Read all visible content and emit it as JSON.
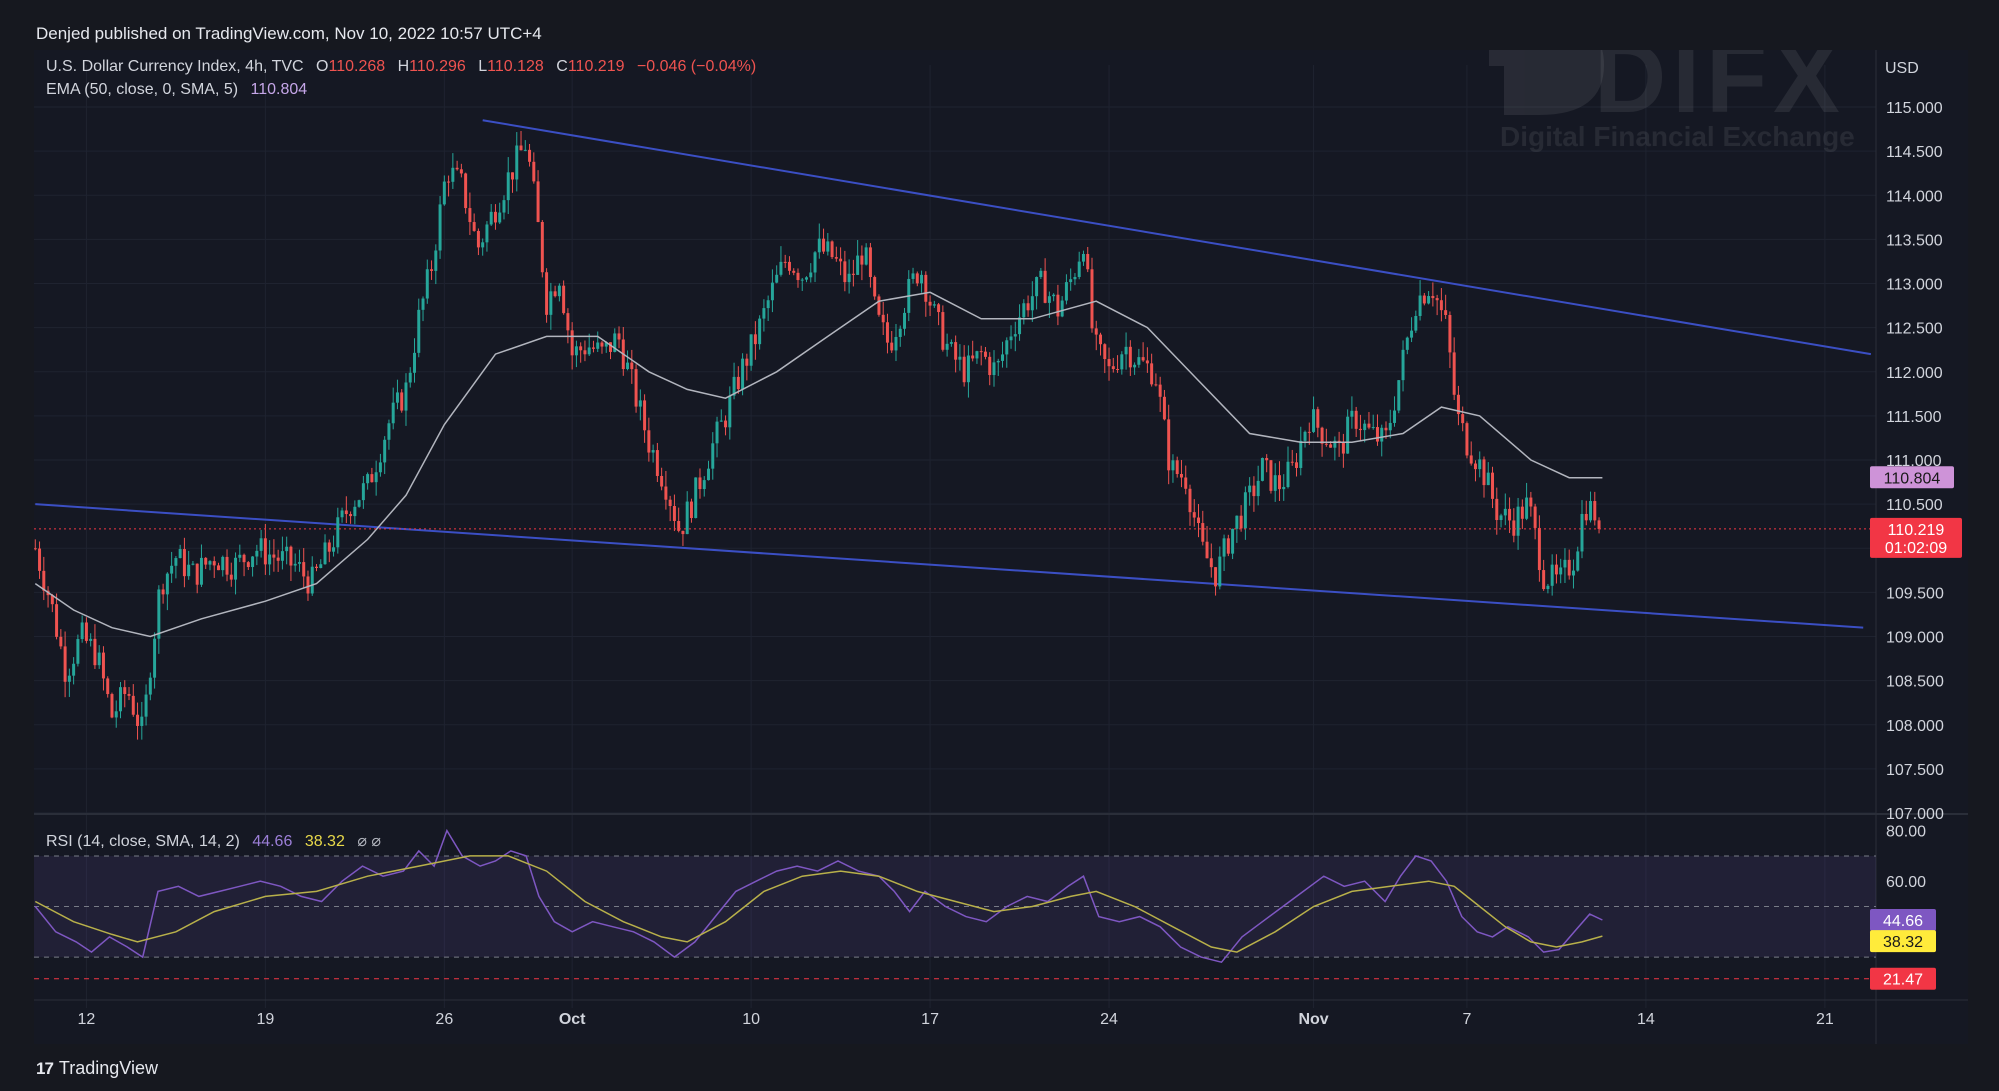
{
  "header": {
    "publish_line": "Denjed published on TradingView.com, Nov 10, 2022 10:57 UTC+4"
  },
  "footer": {
    "brand": "TradingView"
  },
  "watermark": {
    "brand": "DIFX",
    "tagline": "Digital Financial Exchange"
  },
  "colors": {
    "up": "#26a69a",
    "down": "#ef5350",
    "ema": "#b2b5be",
    "trendline": "#3b4fc4",
    "rsi": "#7e57c2",
    "rsi_ma": "#b8b04a",
    "price_tag": "#f23645",
    "ema_tag": "#ce93d8",
    "rsi_tag": "#7e57c2",
    "rsi_ma_tag": "#ffeb3b"
  },
  "legend": {
    "symbol": "U.S. Dollar Currency Index, 4h, TVC",
    "o_label": "O",
    "o_value": "110.268",
    "h_label": "H",
    "h_value": "110.296",
    "l_label": "L",
    "l_value": "110.128",
    "c_label": "C",
    "c_value": "110.219",
    "change": "−0.046 (−0.04%)",
    "ema_label": "EMA (50, close, 0, SMA, 5)",
    "ema_value": "110.804"
  },
  "rsi_legend": {
    "label": "RSI (14, close, SMA, 14, 2)",
    "rsi_value": "44.66",
    "ma_value": "38.32",
    "flags": "⌀ ⌀"
  },
  "price_scale": {
    "currency": "USD",
    "ema_tag": "110.804",
    "price_tag": "110.219",
    "countdown": "01:02:09"
  },
  "rsi_scale": {
    "ticks": [
      "80.00",
      "60.00"
    ],
    "rsi_tag": "44.66",
    "ma_tag": "38.32",
    "low_tag": "21.47"
  },
  "chart_data": {
    "type": "candlestick",
    "title": "U.S. Dollar Currency Index, 4h, TVC",
    "ylabel": "USD",
    "ylim": [
      107.0,
      115.0
    ],
    "yticks": [
      107.0,
      107.5,
      108.0,
      108.5,
      109.0,
      109.5,
      110.0,
      110.5,
      111.0,
      111.5,
      112.0,
      112.5,
      113.0,
      113.5,
      114.0,
      114.5,
      115.0
    ],
    "ytick_labels": [
      "107.000",
      "107.500",
      "108.000",
      "108.500",
      "109.000",
      "109.500",
      "110.000",
      "110.500",
      "111.000",
      "111.500",
      "112.000",
      "112.500",
      "113.000",
      "113.500",
      "114.000",
      "114.500",
      "115.000"
    ],
    "xticks": [
      {
        "day": 12,
        "label": "12"
      },
      {
        "day": 19,
        "label": "19"
      },
      {
        "day": 26,
        "label": "26"
      },
      {
        "day": 31,
        "label": "Oct"
      },
      {
        "day": 38,
        "label": "10"
      },
      {
        "day": 45,
        "label": "17"
      },
      {
        "day": 52,
        "label": "24"
      },
      {
        "day": 60,
        "label": "Nov"
      },
      {
        "day": 66,
        "label": "7"
      },
      {
        "day": 73,
        "label": "14"
      },
      {
        "day": 80,
        "label": "21"
      }
    ],
    "x_range_days": [
      9.95,
      82.0
    ],
    "grid": true,
    "price_path": [
      [
        10.0,
        110.0
      ],
      [
        10.6,
        109.4
      ],
      [
        11.2,
        108.6
      ],
      [
        11.8,
        109.0
      ],
      [
        12.4,
        108.8
      ],
      [
        13.0,
        108.1
      ],
      [
        13.6,
        108.4
      ],
      [
        14.2,
        107.9
      ],
      [
        14.5,
        108.7
      ],
      [
        14.9,
        109.6
      ],
      [
        15.5,
        109.9
      ],
      [
        16.2,
        109.7
      ],
      [
        17.0,
        109.9
      ],
      [
        17.8,
        109.8
      ],
      [
        18.6,
        110.0
      ],
      [
        19.4,
        109.9
      ],
      [
        20.2,
        109.8
      ],
      [
        20.8,
        109.6
      ],
      [
        21.5,
        110.0
      ],
      [
        22.3,
        110.5
      ],
      [
        23.0,
        110.7
      ],
      [
        23.8,
        111.4
      ],
      [
        24.5,
        111.8
      ],
      [
        25.0,
        112.6
      ],
      [
        25.5,
        113.2
      ],
      [
        26.1,
        114.3
      ],
      [
        26.7,
        114.1
      ],
      [
        27.3,
        113.4
      ],
      [
        27.9,
        113.8
      ],
      [
        28.5,
        114.2
      ],
      [
        29.2,
        114.6
      ],
      [
        29.6,
        113.8
      ],
      [
        30.0,
        112.8
      ],
      [
        30.5,
        113.1
      ],
      [
        31.0,
        112.2
      ],
      [
        31.6,
        112.3
      ],
      [
        32.2,
        112.2
      ],
      [
        32.8,
        112.4
      ],
      [
        33.4,
        111.8
      ],
      [
        34.0,
        111.2
      ],
      [
        34.7,
        110.7
      ],
      [
        35.2,
        110.2
      ],
      [
        35.8,
        110.6
      ],
      [
        36.4,
        111.1
      ],
      [
        37.0,
        111.5
      ],
      [
        37.6,
        112.0
      ],
      [
        38.2,
        112.4
      ],
      [
        38.8,
        112.9
      ],
      [
        39.4,
        113.3
      ],
      [
        40.0,
        113.1
      ],
      [
        40.6,
        113.4
      ],
      [
        41.2,
        113.3
      ],
      [
        41.8,
        113.0
      ],
      [
        42.4,
        113.4
      ],
      [
        42.9,
        112.6
      ],
      [
        43.4,
        112.3
      ],
      [
        44.0,
        112.8
      ],
      [
        44.6,
        113.2
      ],
      [
        45.2,
        112.6
      ],
      [
        45.8,
        112.2
      ],
      [
        46.4,
        112.0
      ],
      [
        47.0,
        112.2
      ],
      [
        47.6,
        112.0
      ],
      [
        48.2,
        112.5
      ],
      [
        48.8,
        112.8
      ],
      [
        49.4,
        113.0
      ],
      [
        50.0,
        112.7
      ],
      [
        50.6,
        113.1
      ],
      [
        51.0,
        113.5
      ],
      [
        51.4,
        112.3
      ],
      [
        52.0,
        112.0
      ],
      [
        52.6,
        112.3
      ],
      [
        53.2,
        112.1
      ],
      [
        53.8,
        112.0
      ],
      [
        54.4,
        110.9
      ],
      [
        55.0,
        110.8
      ],
      [
        55.6,
        110.0
      ],
      [
        56.2,
        109.7
      ],
      [
        56.8,
        110.2
      ],
      [
        57.4,
        110.5
      ],
      [
        58.0,
        110.9
      ],
      [
        58.6,
        110.7
      ],
      [
        59.2,
        110.9
      ],
      [
        59.8,
        111.5
      ],
      [
        60.4,
        111.3
      ],
      [
        61.0,
        111.1
      ],
      [
        61.6,
        111.5
      ],
      [
        62.2,
        111.3
      ],
      [
        62.8,
        111.2
      ],
      [
        63.4,
        112.0
      ],
      [
        64.0,
        112.8
      ],
      [
        64.6,
        113.0
      ],
      [
        65.2,
        112.5
      ],
      [
        65.6,
        111.5
      ],
      [
        66.0,
        111.2
      ],
      [
        66.6,
        110.9
      ],
      [
        67.2,
        110.4
      ],
      [
        67.8,
        110.3
      ],
      [
        68.4,
        110.5
      ],
      [
        69.0,
        109.7
      ],
      [
        69.6,
        109.6
      ],
      [
        70.2,
        109.9
      ],
      [
        70.6,
        110.5
      ],
      [
        71.0,
        110.4
      ],
      [
        71.3,
        110.22
      ]
    ],
    "ema_path": [
      [
        10.0,
        109.6
      ],
      [
        11.5,
        109.3
      ],
      [
        13.0,
        109.1
      ],
      [
        14.5,
        109.0
      ],
      [
        16.5,
        109.2
      ],
      [
        19.0,
        109.4
      ],
      [
        21.0,
        109.6
      ],
      [
        23.0,
        110.1
      ],
      [
        24.5,
        110.6
      ],
      [
        26.0,
        111.4
      ],
      [
        28.0,
        112.2
      ],
      [
        30.0,
        112.4
      ],
      [
        32.0,
        112.4
      ],
      [
        34.0,
        112.0
      ],
      [
        35.5,
        111.8
      ],
      [
        37.0,
        111.7
      ],
      [
        39.0,
        112.0
      ],
      [
        41.0,
        112.4
      ],
      [
        43.0,
        112.8
      ],
      [
        45.0,
        112.9
      ],
      [
        47.0,
        112.6
      ],
      [
        49.0,
        112.6
      ],
      [
        51.5,
        112.8
      ],
      [
        53.5,
        112.5
      ],
      [
        55.5,
        111.9
      ],
      [
        57.5,
        111.3
      ],
      [
        59.5,
        111.2
      ],
      [
        61.5,
        111.2
      ],
      [
        63.5,
        111.3
      ],
      [
        65.0,
        111.6
      ],
      [
        66.5,
        111.5
      ],
      [
        68.5,
        111.0
      ],
      [
        70.0,
        110.8
      ],
      [
        71.3,
        110.8
      ]
    ],
    "trendlines": [
      {
        "x1": 27.5,
        "y1": 114.85,
        "x2": 81.8,
        "y2": 112.2
      },
      {
        "x1": 10.0,
        "y1": 110.5,
        "x2": 81.5,
        "y2": 109.1
      }
    ],
    "last_price": 110.219,
    "ema_last": 110.804,
    "rsi": {
      "ylim": [
        17.0,
        85.0
      ],
      "ticks": [
        80,
        60
      ],
      "bands": [
        70,
        50,
        30
      ],
      "low_line": 21.47,
      "rsi_last": 44.66,
      "ma_last": 38.32,
      "rsi_path": [
        [
          10.0,
          50
        ],
        [
          10.8,
          40
        ],
        [
          11.6,
          36
        ],
        [
          12.2,
          32
        ],
        [
          12.9,
          38
        ],
        [
          13.6,
          34
        ],
        [
          14.2,
          30
        ],
        [
          14.8,
          56
        ],
        [
          15.6,
          58
        ],
        [
          16.4,
          54
        ],
        [
          17.2,
          56
        ],
        [
          18.0,
          58
        ],
        [
          18.8,
          60
        ],
        [
          19.6,
          58
        ],
        [
          20.4,
          54
        ],
        [
          21.2,
          52
        ],
        [
          22.0,
          60
        ],
        [
          22.8,
          66
        ],
        [
          23.6,
          62
        ],
        [
          24.4,
          64
        ],
        [
          25.0,
          72
        ],
        [
          25.6,
          66
        ],
        [
          26.1,
          80
        ],
        [
          26.7,
          70
        ],
        [
          27.4,
          66
        ],
        [
          28.0,
          68
        ],
        [
          28.6,
          72
        ],
        [
          29.2,
          70
        ],
        [
          29.7,
          54
        ],
        [
          30.3,
          44
        ],
        [
          31.0,
          40
        ],
        [
          31.8,
          44
        ],
        [
          32.6,
          42
        ],
        [
          33.4,
          40
        ],
        [
          34.2,
          36
        ],
        [
          35.0,
          30
        ],
        [
          35.8,
          36
        ],
        [
          36.6,
          46
        ],
        [
          37.4,
          56
        ],
        [
          38.2,
          60
        ],
        [
          39.0,
          64
        ],
        [
          39.8,
          66
        ],
        [
          40.6,
          64
        ],
        [
          41.4,
          68
        ],
        [
          42.2,
          64
        ],
        [
          43.0,
          62
        ],
        [
          43.6,
          56
        ],
        [
          44.2,
          48
        ],
        [
          44.8,
          56
        ],
        [
          45.6,
          50
        ],
        [
          46.4,
          46
        ],
        [
          47.2,
          44
        ],
        [
          48.0,
          50
        ],
        [
          48.8,
          54
        ],
        [
          49.6,
          52
        ],
        [
          50.4,
          58
        ],
        [
          51.0,
          62
        ],
        [
          51.6,
          46
        ],
        [
          52.4,
          44
        ],
        [
          53.2,
          46
        ],
        [
          54.0,
          42
        ],
        [
          54.8,
          34
        ],
        [
          55.6,
          30
        ],
        [
          56.4,
          28
        ],
        [
          57.2,
          38
        ],
        [
          58.0,
          44
        ],
        [
          58.8,
          50
        ],
        [
          59.6,
          56
        ],
        [
          60.4,
          62
        ],
        [
          61.2,
          58
        ],
        [
          62.0,
          60
        ],
        [
          62.8,
          52
        ],
        [
          63.4,
          62
        ],
        [
          64.0,
          70
        ],
        [
          64.6,
          68
        ],
        [
          65.2,
          60
        ],
        [
          65.8,
          46
        ],
        [
          66.4,
          40
        ],
        [
          67.0,
          38
        ],
        [
          67.6,
          42
        ],
        [
          68.4,
          38
        ],
        [
          69.0,
          32
        ],
        [
          69.6,
          33
        ],
        [
          70.2,
          40
        ],
        [
          70.8,
          47
        ],
        [
          71.3,
          44.66
        ]
      ],
      "ma_path": [
        [
          10.0,
          52
        ],
        [
          11.5,
          44
        ],
        [
          13.0,
          39
        ],
        [
          14.0,
          36
        ],
        [
          15.5,
          40
        ],
        [
          17.0,
          48
        ],
        [
          19.0,
          54
        ],
        [
          21.0,
          56
        ],
        [
          23.0,
          62
        ],
        [
          25.0,
          66
        ],
        [
          27.0,
          70
        ],
        [
          28.5,
          70
        ],
        [
          30.0,
          64
        ],
        [
          31.5,
          52
        ],
        [
          33.0,
          44
        ],
        [
          34.5,
          38
        ],
        [
          35.5,
          36
        ],
        [
          37.0,
          44
        ],
        [
          38.5,
          56
        ],
        [
          40.0,
          62
        ],
        [
          41.5,
          64
        ],
        [
          43.0,
          62
        ],
        [
          44.5,
          56
        ],
        [
          46.0,
          52
        ],
        [
          47.5,
          48
        ],
        [
          49.0,
          50
        ],
        [
          50.5,
          54
        ],
        [
          51.5,
          56
        ],
        [
          53.0,
          50
        ],
        [
          54.5,
          42
        ],
        [
          56.0,
          34
        ],
        [
          57.0,
          32
        ],
        [
          58.5,
          40
        ],
        [
          60.0,
          50
        ],
        [
          61.5,
          56
        ],
        [
          63.0,
          58
        ],
        [
          64.5,
          60
        ],
        [
          65.5,
          58
        ],
        [
          66.5,
          50
        ],
        [
          67.5,
          42
        ],
        [
          68.5,
          36
        ],
        [
          69.5,
          34
        ],
        [
          70.5,
          36
        ],
        [
          71.3,
          38.32
        ]
      ]
    }
  }
}
